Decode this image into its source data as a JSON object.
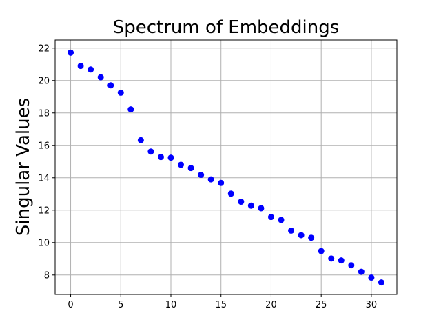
{
  "chart_data": {
    "type": "scatter",
    "title": "Spectrum of Embeddings",
    "xlabel": "",
    "ylabel": "Singular Values",
    "xlim": [
      -1.55,
      32.55
    ],
    "ylim": [
      6.8,
      22.5
    ],
    "xticks": [
      0,
      5,
      10,
      15,
      20,
      25,
      30
    ],
    "yticks": [
      8,
      10,
      12,
      14,
      16,
      18,
      20,
      22
    ],
    "grid": true,
    "marker_color": "#0000ff",
    "series": [
      {
        "x": [
          0,
          1,
          2,
          3,
          4,
          5,
          6,
          7,
          8,
          9,
          10,
          11,
          12,
          13,
          14,
          15,
          16,
          17,
          18,
          19,
          20,
          21,
          22,
          23,
          24,
          25,
          26,
          27,
          28,
          29,
          30,
          31
        ],
        "y": [
          21.72,
          20.9,
          20.68,
          20.2,
          19.7,
          19.25,
          18.22,
          16.32,
          15.62,
          15.28,
          15.24,
          14.8,
          14.6,
          14.18,
          13.9,
          13.68,
          13.02,
          12.52,
          12.28,
          12.12,
          11.58,
          11.4,
          10.74,
          10.46,
          10.3,
          9.48,
          9.02,
          8.9,
          8.6,
          8.2,
          7.84,
          7.54
        ]
      }
    ]
  }
}
